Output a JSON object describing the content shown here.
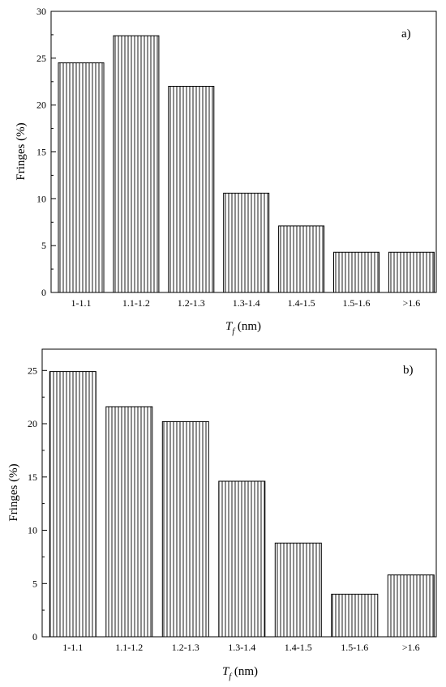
{
  "chart_data": [
    {
      "type": "bar",
      "panel_label": "a)",
      "categories": [
        "1-1.1",
        "1.1-1.2",
        "1.2-1.3",
        "1.3-1.4",
        "1.4-1.5",
        "1.5-1.6",
        ">1.6"
      ],
      "values": [
        24.5,
        27.4,
        22.0,
        10.6,
        7.1,
        4.3,
        4.3
      ],
      "ylabel": "Fringes (%)",
      "xlabel_main": "T",
      "xlabel_sub": "f",
      "xlabel_unit": " (nm)",
      "ylim": [
        0,
        30
      ],
      "yticks": [
        0,
        5,
        10,
        15,
        20,
        25,
        30
      ],
      "grid": false,
      "bar_fill": "vertical-hatch"
    },
    {
      "type": "bar",
      "panel_label": "b)",
      "categories": [
        "1-1.1",
        "1.1-1.2",
        "1.2-1.3",
        "1.3-1.4",
        "1.4-1.5",
        "1.5-1.6",
        ">1.6"
      ],
      "values": [
        24.9,
        21.6,
        20.2,
        14.6,
        8.8,
        4.0,
        5.8
      ],
      "ylabel": "Fringes (%)",
      "xlabel_main": "T",
      "xlabel_sub": "f",
      "xlabel_unit": " (nm)",
      "ylim": [
        0,
        27
      ],
      "yticks": [
        0,
        5,
        10,
        15,
        20,
        25
      ],
      "grid": false,
      "bar_fill": "vertical-hatch"
    }
  ],
  "colors": {
    "axis": "#000000",
    "bar_stroke": "#000000",
    "bar_fill": "#ffffff"
  }
}
